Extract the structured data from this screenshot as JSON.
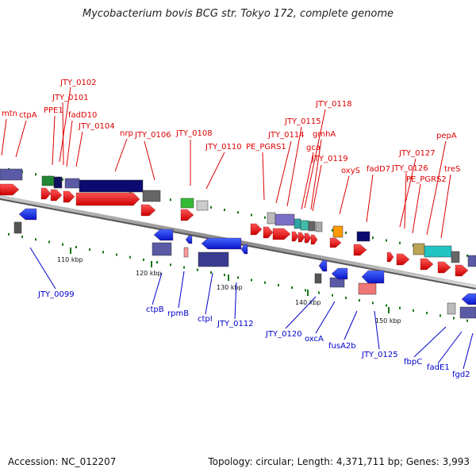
{
  "title": "Mycobacterium bovis BCG str. Tokyo 172, complete genome",
  "footer": {
    "accession": "Accession: NC_012207",
    "topology": "Topology: circular; Length: 4,371,711 bp; Genes: 3,993"
  },
  "colors": {
    "label_top": "#dd0000",
    "label_bottom": "#0000cc",
    "arrow_forward": "#ee1111",
    "arrow_reverse": "#1122ee",
    "backbone": "#888888",
    "tick": "#117711"
  },
  "scale_labels": [
    "110 kbp",
    "120 kbp",
    "130 kbp",
    "140 kbp",
    "150 kbp"
  ],
  "top_genes": [
    "mtn",
    "ctpA",
    "JTY_0102",
    "JTY_0101",
    "PPE1",
    "fadD10",
    "JTY_0104",
    "nrp",
    "JTY_0106",
    "JTY_0108",
    "JTY_0110",
    "PE_PGRS1",
    "JTY_0114",
    "JTY_0115",
    "JTY_0118",
    "gmhA",
    "gca",
    "JTY_0119",
    "oxyS",
    "fadD7",
    "JTY_0127",
    "JTY_0126",
    "PE_PGRS2",
    "pepA",
    "treS"
  ],
  "bottom_genes": [
    "JTY_0099",
    "ctpB",
    "rpmB",
    "ctpI",
    "JTY_0112",
    "JTY_0120",
    "oxcA",
    "fusA2b",
    "JTY_0125",
    "fbpC",
    "fadE1",
    "fgd2"
  ]
}
